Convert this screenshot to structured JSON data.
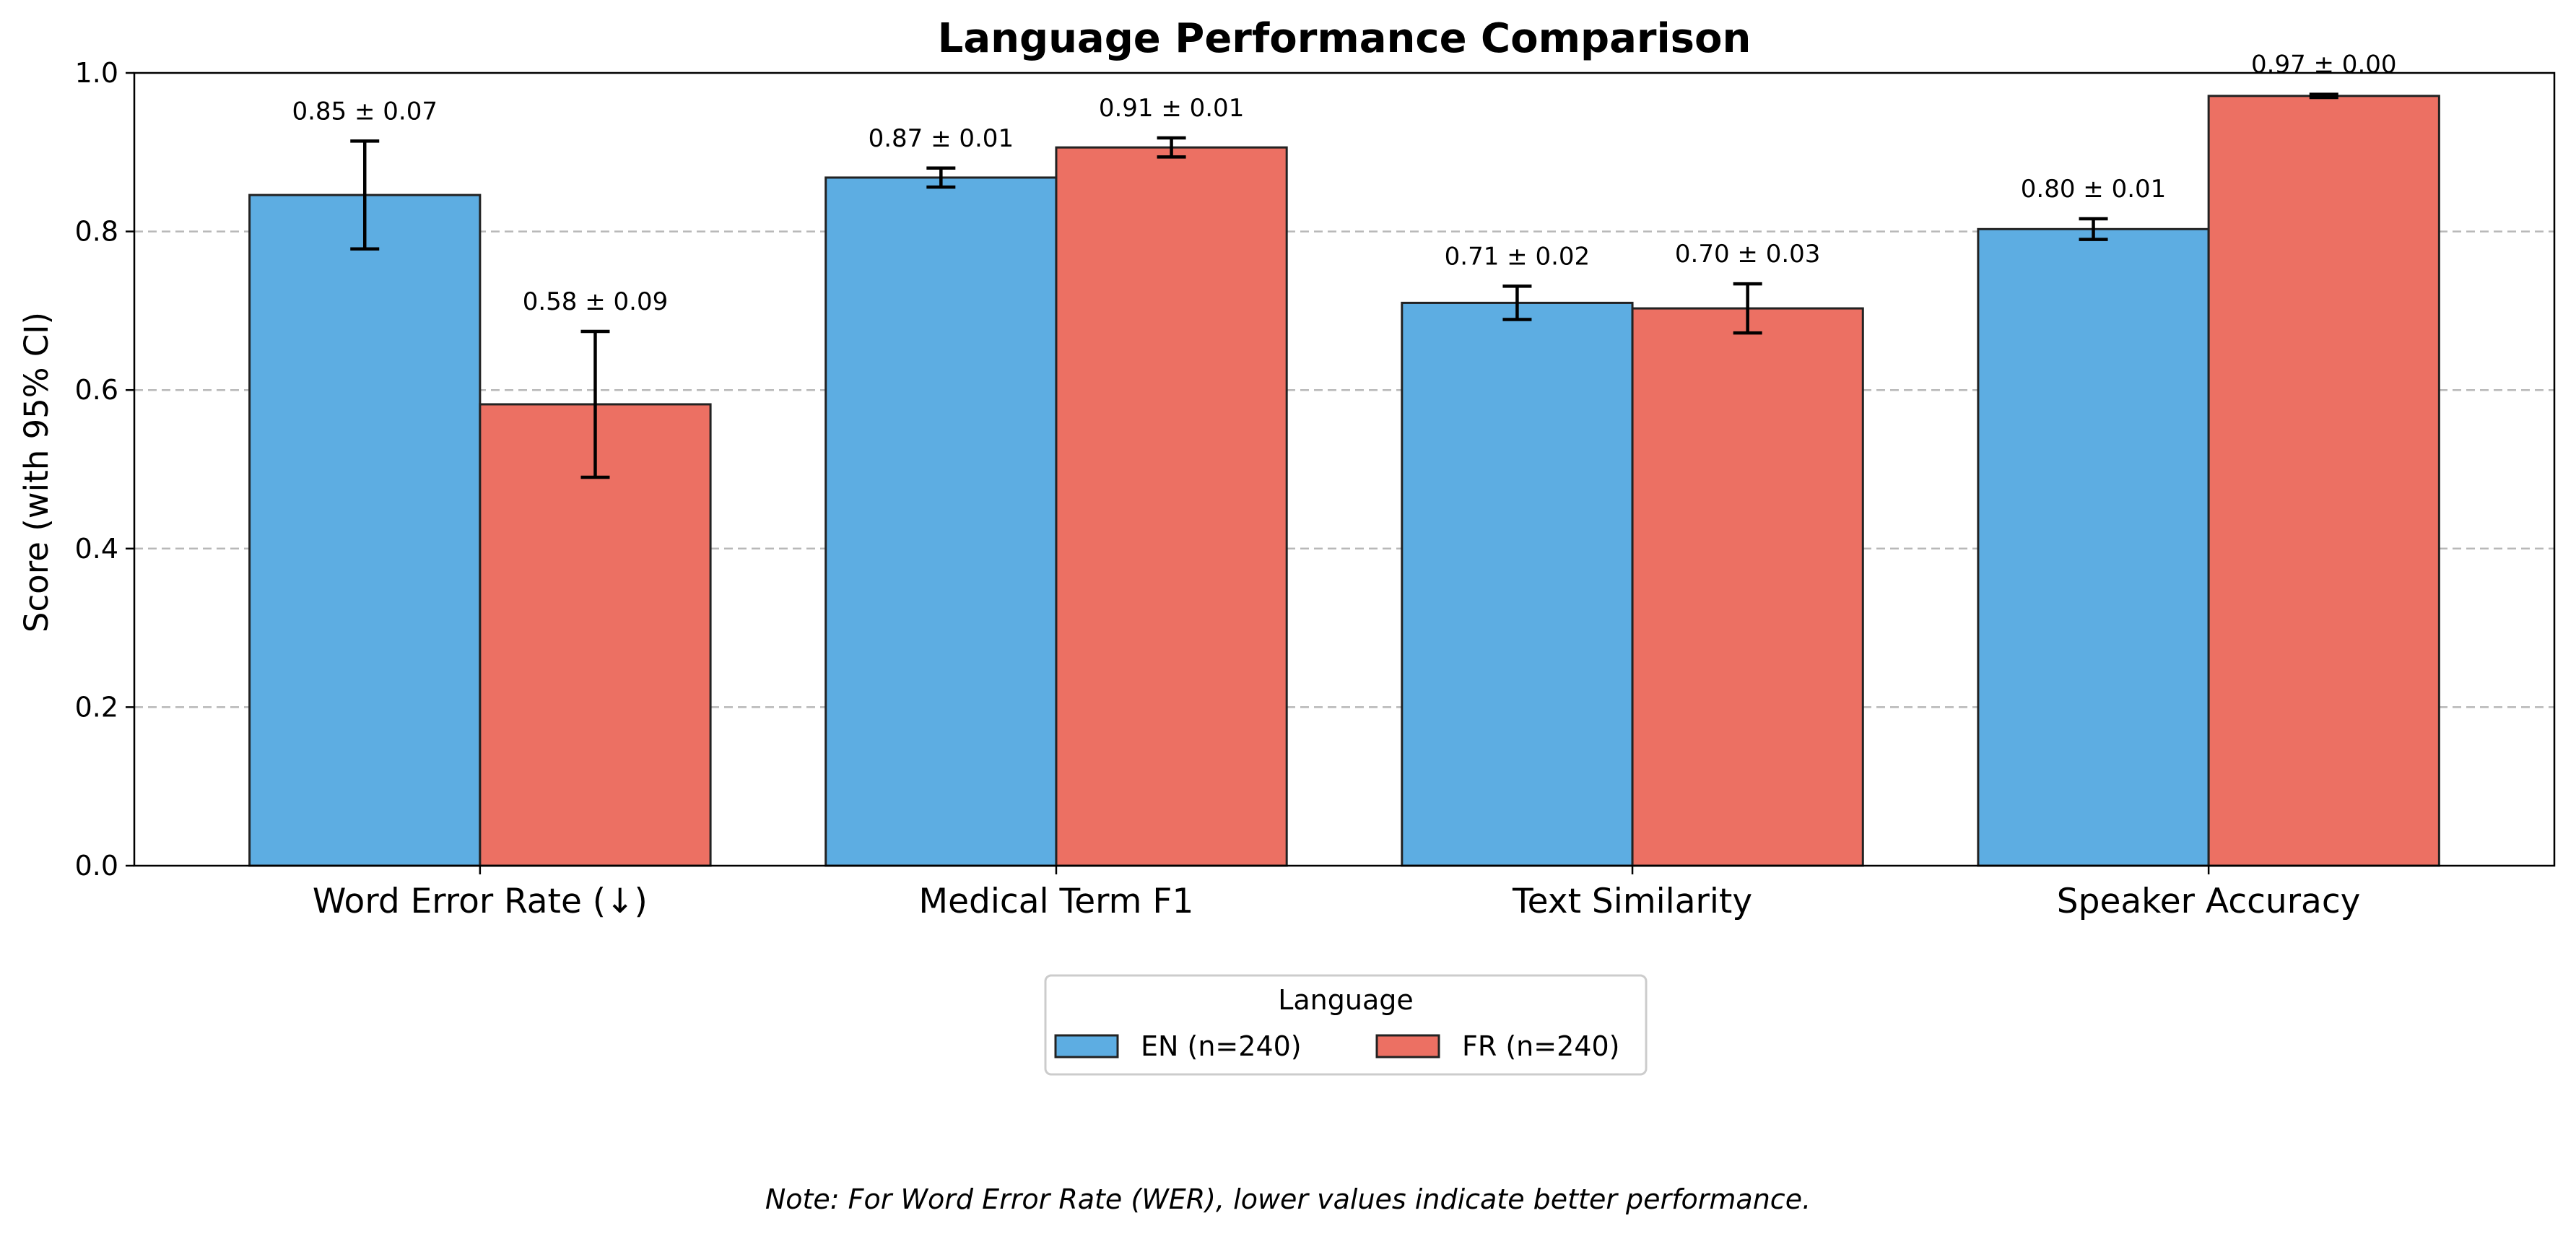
{
  "chart_data": {
    "type": "bar",
    "title": "Language Performance Comparison",
    "xlabel": "",
    "ylabel": "Score (with 95% CI)",
    "ylim": [
      0,
      1.0
    ],
    "yticks": [
      "0.0",
      "0.2",
      "0.4",
      "0.6",
      "0.8",
      "1.0"
    ],
    "grid": "y-dashed",
    "categories": [
      "Word Error Rate (↓)",
      "Medical Term F1",
      "Text Similarity",
      "Speaker Accuracy"
    ],
    "series": [
      {
        "name": "EN (n=240)",
        "color": "#5DADE2",
        "values": [
          0.846,
          0.868,
          0.71,
          0.803
        ],
        "ci": [
          0.068,
          0.012,
          0.021,
          0.013
        ],
        "labels": [
          "0.85 ± 0.07",
          "0.87 ± 0.01",
          "0.71 ± 0.02",
          "0.80 ± 0.01"
        ]
      },
      {
        "name": "FR (n=240)",
        "color": "#EC7063",
        "values": [
          0.582,
          0.906,
          0.703,
          0.971
        ],
        "ci": [
          0.092,
          0.012,
          0.031,
          0.002
        ],
        "labels": [
          "0.58 ± 0.09",
          "0.91 ± 0.01",
          "0.70 ± 0.03",
          "0.97 ± 0.00"
        ]
      }
    ],
    "legend": {
      "title": "Language",
      "placement": "below-center"
    },
    "note": "Note: For Word Error Rate (WER), lower values indicate better performance."
  }
}
